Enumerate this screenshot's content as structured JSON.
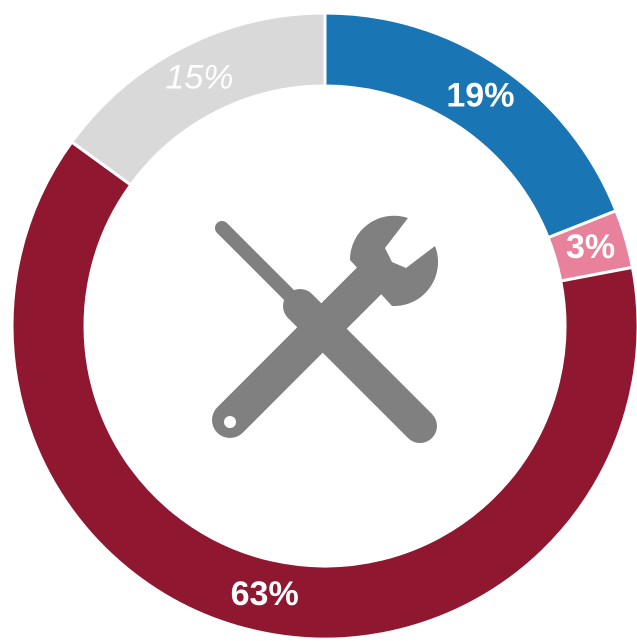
{
  "chart_data": {
    "type": "donut",
    "categories": [
      null,
      null,
      null,
      null
    ],
    "values": [
      19,
      3,
      63,
      15
    ],
    "value_labels": [
      "19%",
      "3%",
      "63%",
      "15%"
    ],
    "colors": [
      "#1a75b5",
      "#e8819b",
      "#8f1730",
      "#d9d9d9"
    ]
  }
}
